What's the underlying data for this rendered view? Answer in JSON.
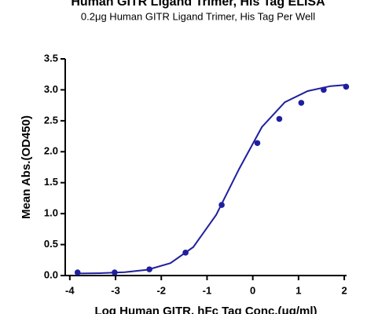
{
  "chart_data": {
    "type": "scatter",
    "title": "Human GITR Ligand Trimer, His Tag ELISA",
    "subtitle": "0.2μg Human GITR Ligand Trimer, His Tag Per Well",
    "x_label": "Log Human GITR, hFc Tag Conc.(μg/ml)",
    "y_label": "Mean Abs.(OD450)",
    "color": "#1f1f9e",
    "x": [
      -3.83,
      -3.02,
      -2.26,
      -1.47,
      -0.68,
      0.1,
      0.58,
      1.06,
      1.55,
      2.04
    ],
    "values": [
      0.05,
      0.05,
      0.1,
      0.37,
      1.14,
      2.14,
      2.53,
      2.79,
      3.0,
      3.05
    ],
    "fit": {
      "x": [
        -3.83,
        -3.3,
        -2.8,
        -2.3,
        -1.8,
        -1.3,
        -0.8,
        -0.3,
        0.2,
        0.7,
        1.2,
        1.7,
        2.04
      ],
      "values": [
        0.033,
        0.039,
        0.054,
        0.094,
        0.2,
        0.46,
        0.98,
        1.72,
        2.4,
        2.8,
        2.98,
        3.06,
        3.08
      ]
    },
    "xlim": [
      -4.1,
      2.05
    ],
    "xticks": [
      -4,
      -3,
      -2,
      -1,
      0,
      1,
      2
    ],
    "ylim": [
      0,
      3.5
    ],
    "yticks": [
      {
        "value": 0,
        "label": "0.0"
      },
      {
        "value": 0.5,
        "label": "0.5"
      },
      {
        "value": 1,
        "label": "1.0"
      },
      {
        "value": 1.5,
        "label": "1.5"
      },
      {
        "value": 2,
        "label": "2.0"
      },
      {
        "value": 2.5,
        "label": "2.5"
      },
      {
        "value": 3,
        "label": "3.0"
      },
      {
        "value": 3.5,
        "label": "3.5"
      }
    ]
  }
}
